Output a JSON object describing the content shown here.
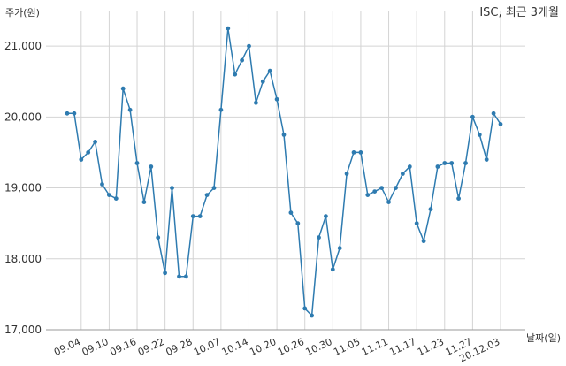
{
  "chart_data": {
    "type": "line",
    "title": "ISC, 최근 3개월",
    "ylabel": "주가(원)",
    "xlabel": "날짜(일)",
    "ylim": [
      17000,
      21500
    ],
    "yticks": [
      17000,
      18000,
      19000,
      20000,
      21000
    ],
    "ytick_labels": [
      "17,000",
      "18,000",
      "19,000",
      "20,000",
      "21,000"
    ],
    "xtick_labels": [
      "09.04",
      "09.10",
      "09.16",
      "09.22",
      "09.28",
      "10.07",
      "10.14",
      "10.20",
      "10.26",
      "10.30",
      "11.05",
      "11.11",
      "11.17",
      "11.23",
      "11.27",
      "20.12.03"
    ],
    "xtick_indices": [
      2,
      6,
      10,
      14,
      18,
      22,
      26,
      30,
      34,
      38,
      42,
      46,
      50,
      54,
      58,
      62
    ],
    "grid": true,
    "line_color": "#2e7bb0",
    "series": [
      {
        "values": [
          20050,
          20050,
          19400,
          19500,
          19650,
          19050,
          18900,
          18850,
          20400,
          20100,
          19350,
          18800,
          19300,
          18300,
          17800,
          19000,
          17750,
          17750,
          18600,
          18600,
          18900,
          19000,
          20100,
          21250,
          20600,
          20800,
          21000,
          20200,
          20500,
          20650,
          20250,
          19750,
          18650,
          18500,
          17300,
          17200,
          18300,
          18600,
          17850,
          18150,
          19200,
          19500,
          19500,
          18900,
          18950,
          19000,
          18800,
          19000,
          19200,
          19300,
          18500,
          18250,
          18700,
          19300,
          19350,
          19350,
          18850,
          19350,
          20000,
          19750,
          19400,
          20050,
          19900
        ]
      }
    ]
  }
}
